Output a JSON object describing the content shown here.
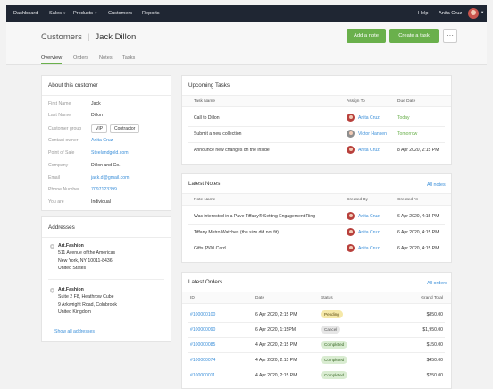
{
  "nav": {
    "left": [
      {
        "label": "Dashboard",
        "dropdown": false
      },
      {
        "label": "Sales",
        "dropdown": true
      },
      {
        "label": "Products",
        "dropdown": true
      },
      {
        "label": "Customers",
        "dropdown": false
      },
      {
        "label": "Reports",
        "dropdown": false
      }
    ],
    "help": "Help",
    "user": "Anita Cruz"
  },
  "header": {
    "section": "Customers",
    "name": "Jack Dillon",
    "add_note": "Add a note",
    "create_task": "Create a task",
    "more": "···",
    "tabs": [
      "Overview",
      "Orders",
      "Notes",
      "Tasks"
    ]
  },
  "about": {
    "title": "About this customer",
    "first_name_label": "First Name",
    "first_name": "Jack",
    "last_name_label": "Last Name",
    "last_name": "Dillon",
    "group_label": "Customer group",
    "group_vip": "VIP",
    "group_contractor": "Contractor",
    "owner_label": "Contact owner",
    "owner": "Anita Cruz",
    "pos_label": "Point of Sale",
    "pos": "Steelandgold.com",
    "company_label": "Company",
    "company": "Dillon and Co.",
    "email_label": "Email",
    "email": "jack.d@gmail.com",
    "phone_label": "Phone Number",
    "phone": "7097123399",
    "you_are_label": "You are",
    "you_are": "Individual"
  },
  "addresses": {
    "title": "Addresses",
    "list": [
      {
        "name": "Art.Fashion",
        "line1": "511 Avenue of the Americas",
        "line2": "New York, NY 10011-8436",
        "line3": "United States"
      },
      {
        "name": "Art.Fashion",
        "line1": "Suite 2 F8, Heathrow Cube",
        "line2": "9 Arkwright Road, Colnbrook",
        "line3": "United Kingdom"
      }
    ],
    "show_all": "Show all addresses"
  },
  "tasks": {
    "title": "Upcoming Tasks",
    "cols": [
      "Task Name",
      "Assign To",
      "Due Date"
    ],
    "rows": [
      {
        "name": "Call to Dillon",
        "assignee": "Anita Cruz",
        "due": "Today",
        "due_color": "green"
      },
      {
        "name": "Submit a new collection",
        "assignee": "Victor Hansen",
        "due": "Tomorrow",
        "due_color": "green"
      },
      {
        "name": "Announce new changes on the inside",
        "assignee": "Anita Cruz",
        "due": "8 Apr 2020, 2:15 PM",
        "due_color": "normal"
      }
    ]
  },
  "notes": {
    "title": "Latest Notes",
    "all_link": "All notes",
    "cols": [
      "Note Name",
      "Created By",
      "Created At"
    ],
    "rows": [
      {
        "name": "Was interested in a Pave Tiffany® Setting Engagement Ring",
        "by": "Anita Cruz",
        "at": "6 Apr 2020, 4:15 PM"
      },
      {
        "name": "Tiffany Metro Watches (the size did not fit)",
        "by": "Anita Cruz",
        "at": "6 Apr 2020, 4:15 PM"
      },
      {
        "name": "Gifts $500 Card",
        "by": "Anita Cruz",
        "at": "6 Apr 2020, 4:15 PM"
      }
    ]
  },
  "orders": {
    "title": "Latest Orders",
    "all_link": "All orders",
    "cols": [
      "ID",
      "Date",
      "Status",
      "Grand Total"
    ],
    "rows": [
      {
        "id": "#100000100",
        "date": "6 Apr 2020, 2:15 PM",
        "status": "Pending",
        "total": "$850.00"
      },
      {
        "id": "#100000090",
        "date": "6 Apr 2020, 1:15PM",
        "status": "Cancel",
        "total": "$1,950.00"
      },
      {
        "id": "#100000085",
        "date": "4 Apr 2020, 2:15 PM",
        "status": "Completed",
        "total": "$150.00"
      },
      {
        "id": "#100000074",
        "date": "4 Apr 2020, 2:15 PM",
        "status": "Completed",
        "total": "$450.00"
      },
      {
        "id": "#100000011",
        "date": "4 Apr 2020, 2:15 PM",
        "status": "Completed",
        "total": "$250.00"
      }
    ]
  },
  "colors": {
    "accent": "#6ab04c",
    "link": "#3b8fd9",
    "nav": "#1f2633"
  }
}
